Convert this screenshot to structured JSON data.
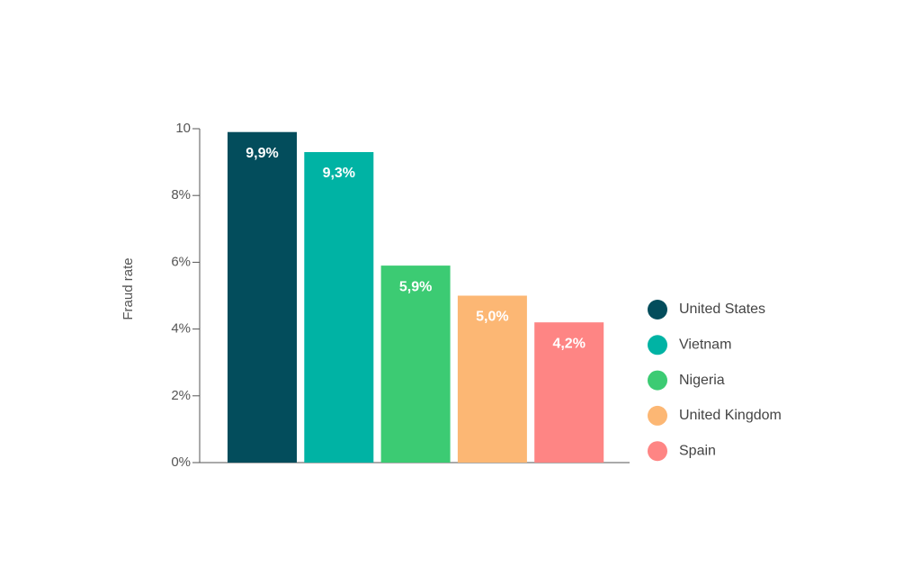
{
  "chart_data": {
    "type": "bar",
    "y_label": "Fraud rate",
    "series": [
      {
        "name": "United States",
        "color": "#034d5c",
        "values": [
          9.9
        ],
        "value_labels": [
          "9,9%"
        ]
      },
      {
        "name": "Vietnam",
        "color": "#00b3a4",
        "values": [
          9.3
        ],
        "value_labels": [
          "9,3%"
        ]
      },
      {
        "name": "Nigeria",
        "color": "#3ccb73",
        "values": [
          5.9
        ],
        "value_labels": [
          "5,9%"
        ]
      },
      {
        "name": "United Kingdom",
        "color": "#fcb774",
        "values": [
          5.0
        ],
        "value_labels": [
          "5,0%"
        ]
      },
      {
        "name": "Spain",
        "color": "#fe8584",
        "values": [
          4.2
        ],
        "value_labels": [
          "4,2%"
        ]
      }
    ],
    "ylim": [
      0,
      10
    ],
    "yticks": [
      {
        "value": 0,
        "label": "0%"
      },
      {
        "value": 2,
        "label": "2%"
      },
      {
        "value": 4,
        "label": "4%"
      },
      {
        "value": 6,
        "label": "6%"
      },
      {
        "value": 8,
        "label": "8%"
      },
      10
    ],
    "legend": "right"
  }
}
